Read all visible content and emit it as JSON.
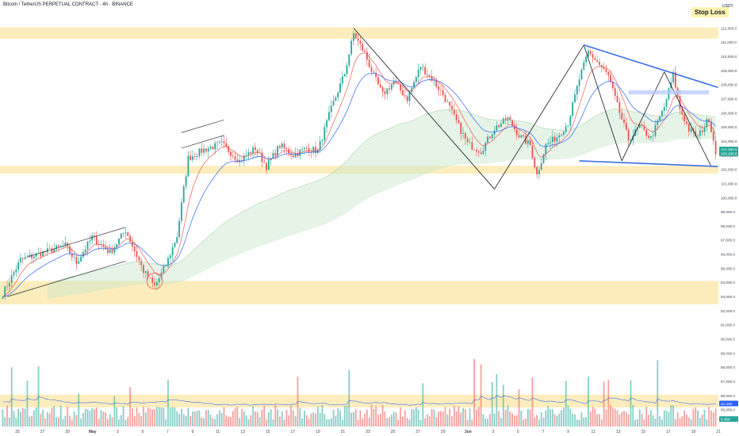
{
  "header": {
    "title": "Bitcoin / TetherUS PERPETUAL CONTRACT · 4h · BINANCE",
    "currency": "USDT",
    "stop_loss": "Stop Loss"
  },
  "colors": {
    "up": "#26a69a",
    "down": "#ef5350",
    "zone": "#fde7a6",
    "ema_fast": "#ef5350",
    "ema_mid": "#2962ff",
    "cloud": "#c8e6c9",
    "trend": "#3a6fe6",
    "drawing": "#131722"
  },
  "chart_data": {
    "type": "candlestick",
    "title": "Bitcoin / TetherUS PERPETUAL CONTRACT · 4h · BINANCE",
    "ylim": [
      83800,
      113200
    ],
    "yticks": [
      {
        "value": 112000,
        "label": "112,000.0"
      },
      {
        "value": 111000,
        "label": "111,000.0"
      },
      {
        "value": 110000,
        "label": "110,000.0"
      },
      {
        "value": 109000,
        "label": "109,000.0"
      },
      {
        "value": 108000,
        "label": "108,000.0"
      },
      {
        "value": 107000,
        "label": "107,000.0"
      },
      {
        "value": 106000,
        "label": "106,000.0"
      },
      {
        "value": 105000,
        "label": "105,000.0"
      },
      {
        "value": 104000,
        "label": "104,000.0"
      },
      {
        "value": 103000,
        "label": "103,000.0"
      },
      {
        "value": 102000,
        "label": "102,000.0"
      },
      {
        "value": 101000,
        "label": "101,000.0"
      },
      {
        "value": 100000,
        "label": "100,000.0"
      },
      {
        "value": 99000,
        "label": "99,000.0"
      },
      {
        "value": 98000,
        "label": "98,000.0"
      },
      {
        "value": 97000,
        "label": "97,000.0"
      },
      {
        "value": 96000,
        "label": "96,000.0"
      },
      {
        "value": 95000,
        "label": "95,000.0"
      },
      {
        "value": 94000,
        "label": "94,000.0"
      },
      {
        "value": 93000,
        "label": "93,000.0"
      },
      {
        "value": 92000,
        "label": "92,000.0"
      },
      {
        "value": 91000,
        "label": "91,000.0"
      },
      {
        "value": 90000,
        "label": "90,000.0"
      },
      {
        "value": 89000,
        "label": "89,000.0"
      },
      {
        "value": 88000,
        "label": "88,000.0"
      },
      {
        "value": 87000,
        "label": "87,000.0"
      },
      {
        "value": 86000,
        "label": "86,000.0"
      },
      {
        "value": 85000,
        "label": "85,000.0"
      }
    ],
    "xticks": [
      "25",
      "27",
      "29",
      "May",
      "3",
      "5",
      "7",
      "9",
      "11",
      "13",
      "15",
      "17",
      "19",
      "21",
      "23",
      "25",
      "27",
      "29",
      "Jun",
      "3",
      "5",
      "7",
      "9",
      "11",
      "13",
      "15",
      "17",
      "19",
      "21"
    ],
    "price_labels": [
      {
        "label": "103,383.9",
        "sub": "01:40:00",
        "value": 103384,
        "color": "#26a69a"
      },
      {
        "label": "103,100.0",
        "value": 103100,
        "color": "#26a69a"
      },
      {
        "label": "24.42K",
        "value": 85400,
        "color": "#2962ff"
      },
      {
        "label": "5.45K",
        "value": 84300,
        "color": "#26a69a"
      }
    ],
    "zones": [
      {
        "name": "top-resistance",
        "from": 111250,
        "to": 112050
      },
      {
        "name": "mid-support",
        "from": 101700,
        "to": 102250
      },
      {
        "name": "lower-support",
        "from": 92450,
        "to": 94100
      },
      {
        "name": "bottom-zone",
        "from": 85150,
        "to": 86050
      }
    ],
    "anchors": [
      {
        "t": 0,
        "p": 93200
      },
      {
        "t": 8,
        "p": 95600
      },
      {
        "t": 18,
        "p": 96100
      },
      {
        "t": 28,
        "p": 96600
      },
      {
        "t": 33,
        "p": 95400
      },
      {
        "t": 40,
        "p": 97200
      },
      {
        "t": 48,
        "p": 96100
      },
      {
        "t": 55,
        "p": 97700
      },
      {
        "t": 63,
        "p": 94800
      },
      {
        "t": 68,
        "p": 93700
      },
      {
        "t": 73,
        "p": 95200
      },
      {
        "t": 78,
        "p": 97300
      },
      {
        "t": 83,
        "p": 102800
      },
      {
        "t": 90,
        "p": 103400
      },
      {
        "t": 98,
        "p": 103800
      },
      {
        "t": 106,
        "p": 102600
      },
      {
        "t": 113,
        "p": 103500
      },
      {
        "t": 118,
        "p": 102200
      },
      {
        "t": 124,
        "p": 103700
      },
      {
        "t": 130,
        "p": 103000
      },
      {
        "t": 136,
        "p": 103500
      },
      {
        "t": 141,
        "p": 103300
      },
      {
        "t": 147,
        "p": 106300
      },
      {
        "t": 153,
        "p": 108800
      },
      {
        "t": 157,
        "p": 111600
      },
      {
        "t": 162,
        "p": 110200
      },
      {
        "t": 166,
        "p": 108600
      },
      {
        "t": 170,
        "p": 107300
      },
      {
        "t": 175,
        "p": 108200
      },
      {
        "t": 181,
        "p": 107000
      },
      {
        "t": 187,
        "p": 109300
      },
      {
        "t": 192,
        "p": 108400
      },
      {
        "t": 197,
        "p": 107300
      },
      {
        "t": 202,
        "p": 105700
      },
      {
        "t": 208,
        "p": 103800
      },
      {
        "t": 214,
        "p": 103300
      },
      {
        "t": 220,
        "p": 104900
      },
      {
        "t": 226,
        "p": 105600
      },
      {
        "t": 231,
        "p": 104400
      },
      {
        "t": 236,
        "p": 103700
      },
      {
        "t": 239,
        "p": 101600
      },
      {
        "t": 243,
        "p": 103700
      },
      {
        "t": 248,
        "p": 104300
      },
      {
        "t": 253,
        "p": 105300
      },
      {
        "t": 258,
        "p": 108400
      },
      {
        "t": 262,
        "p": 110300
      },
      {
        "t": 266,
        "p": 109600
      },
      {
        "t": 271,
        "p": 108600
      },
      {
        "t": 275,
        "p": 106500
      },
      {
        "t": 280,
        "p": 104100
      },
      {
        "t": 285,
        "p": 105000
      },
      {
        "t": 290,
        "p": 104200
      },
      {
        "t": 296,
        "p": 106400
      },
      {
        "t": 300,
        "p": 108700
      },
      {
        "t": 303,
        "p": 106300
      },
      {
        "t": 307,
        "p": 104800
      },
      {
        "t": 311,
        "p": 104300
      },
      {
        "t": 316,
        "p": 105600
      },
      {
        "t": 319,
        "p": 103300
      }
    ],
    "series": [
      {
        "name": "EMA fast",
        "color": "#ef5350"
      },
      {
        "name": "EMA mid",
        "color": "#2962ff"
      }
    ]
  }
}
